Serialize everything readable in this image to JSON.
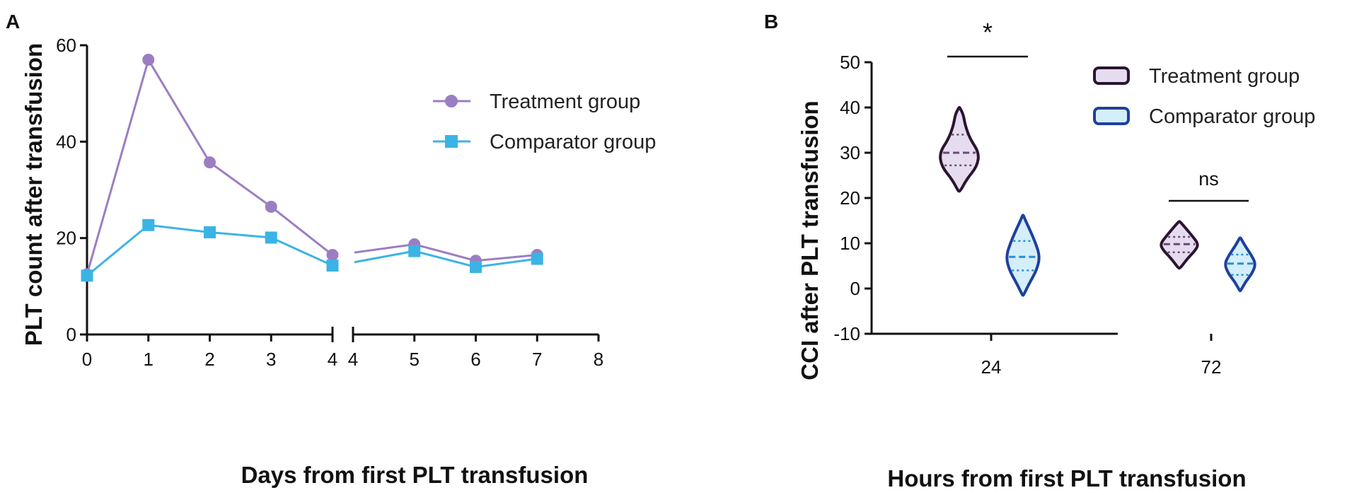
{
  "colors": {
    "treatment": "#9b7ec2",
    "comparator": "#3bb4e5",
    "violin_treatment_fill": "#e6dcef",
    "violin_treatment_edge": "#2a1530",
    "violin_comparator_fill": "#d4eefa",
    "violin_comparator_edge": "#1f3f9e",
    "axis": "#111111"
  },
  "chart_data": [
    {
      "panel": "A",
      "type": "line",
      "xlabel": "Days from first PLT transfusion",
      "ylabel": "PLT count after transfusion",
      "ylim": [
        0,
        60
      ],
      "yticks": [
        0,
        20,
        40,
        60
      ],
      "xbreak": true,
      "segments": [
        {
          "xlim": [
            0,
            4
          ],
          "xticks": [
            0,
            1,
            2,
            3,
            4
          ]
        },
        {
          "xlim": [
            4,
            8
          ],
          "xticks": [
            4,
            5,
            6,
            7,
            8
          ]
        }
      ],
      "legend": "top-right",
      "series": [
        {
          "name": "Treatment group",
          "marker": "circle",
          "segments": [
            {
              "x": [
                0,
                1,
                2,
                3,
                4
              ],
              "y": [
                12.5,
                57,
                35.7,
                26.5,
                16.5
              ]
            },
            {
              "x": [
                4,
                5,
                6,
                7
              ],
              "y": [
                17,
                18.7,
                15.3,
                16.5
              ]
            }
          ]
        },
        {
          "name": "Comparator group",
          "marker": "square",
          "segments": [
            {
              "x": [
                0,
                1,
                2,
                3,
                4
              ],
              "y": [
                12.2,
                22.7,
                21.2,
                20.1,
                14.3
              ]
            },
            {
              "x": [
                4,
                5,
                6,
                7
              ],
              "y": [
                15,
                17.3,
                14,
                15.7
              ]
            }
          ]
        }
      ]
    },
    {
      "panel": "B",
      "type": "violin",
      "xlabel": "Hours from first PLT transfusion",
      "ylabel": "CCI after PLT transfusion",
      "ylim": [
        -10,
        50
      ],
      "yticks": [
        -10,
        0,
        10,
        20,
        30,
        40,
        50
      ],
      "categories": [
        "24",
        "72"
      ],
      "legend": "top-right",
      "series": [
        {
          "name": "Treatment group",
          "groups": [
            {
              "category": "24",
              "min": 21.5,
              "max": 40,
              "q1": 27.2,
              "median": 30,
              "q3": 34,
              "profile": [
                [
                  21.5,
                  0.05
                ],
                [
                  24,
                  0.35
                ],
                [
                  27,
                  0.9
                ],
                [
                  30,
                  1.0
                ],
                [
                  33,
                  0.55
                ],
                [
                  36,
                  0.3
                ],
                [
                  38.5,
                  0.2
                ],
                [
                  40,
                  0.02
                ]
              ]
            },
            {
              "category": "72",
              "min": 4.5,
              "max": 14.8,
              "q1": 8,
              "median": 9.8,
              "q3": 11.4,
              "profile": [
                [
                  4.5,
                  0.05
                ],
                [
                  6.5,
                  0.4
                ],
                [
                  8.5,
                  0.85
                ],
                [
                  9.8,
                  1.0
                ],
                [
                  11.5,
                  0.7
                ],
                [
                  13.5,
                  0.3
                ],
                [
                  14.8,
                  0.03
                ]
              ]
            }
          ]
        },
        {
          "name": "Comparator group",
          "groups": [
            {
              "category": "24",
              "min": -1.5,
              "max": 16.2,
              "q1": 4,
              "median": 7,
              "q3": 10.5,
              "profile": [
                [
                  -1.5,
                  0.03
                ],
                [
                  1,
                  0.35
                ],
                [
                  4,
                  0.8
                ],
                [
                  7,
                  1.0
                ],
                [
                  10,
                  0.75
                ],
                [
                  13,
                  0.4
                ],
                [
                  15,
                  0.15
                ],
                [
                  16.2,
                  0.02
                ]
              ]
            },
            {
              "category": "72",
              "min": -0.5,
              "max": 11.2,
              "q1": 3,
              "median": 5.5,
              "q3": 7.5,
              "profile": [
                [
                  -0.5,
                  0.03
                ],
                [
                  1.5,
                  0.35
                ],
                [
                  3.5,
                  0.8
                ],
                [
                  5.5,
                  1.0
                ],
                [
                  7.5,
                  0.7
                ],
                [
                  9.5,
                  0.3
                ],
                [
                  11.2,
                  0.03
                ]
              ]
            }
          ]
        }
      ],
      "annotations": [
        {
          "category": "24",
          "text": "*"
        },
        {
          "category": "72",
          "text": "ns"
        }
      ]
    }
  ]
}
